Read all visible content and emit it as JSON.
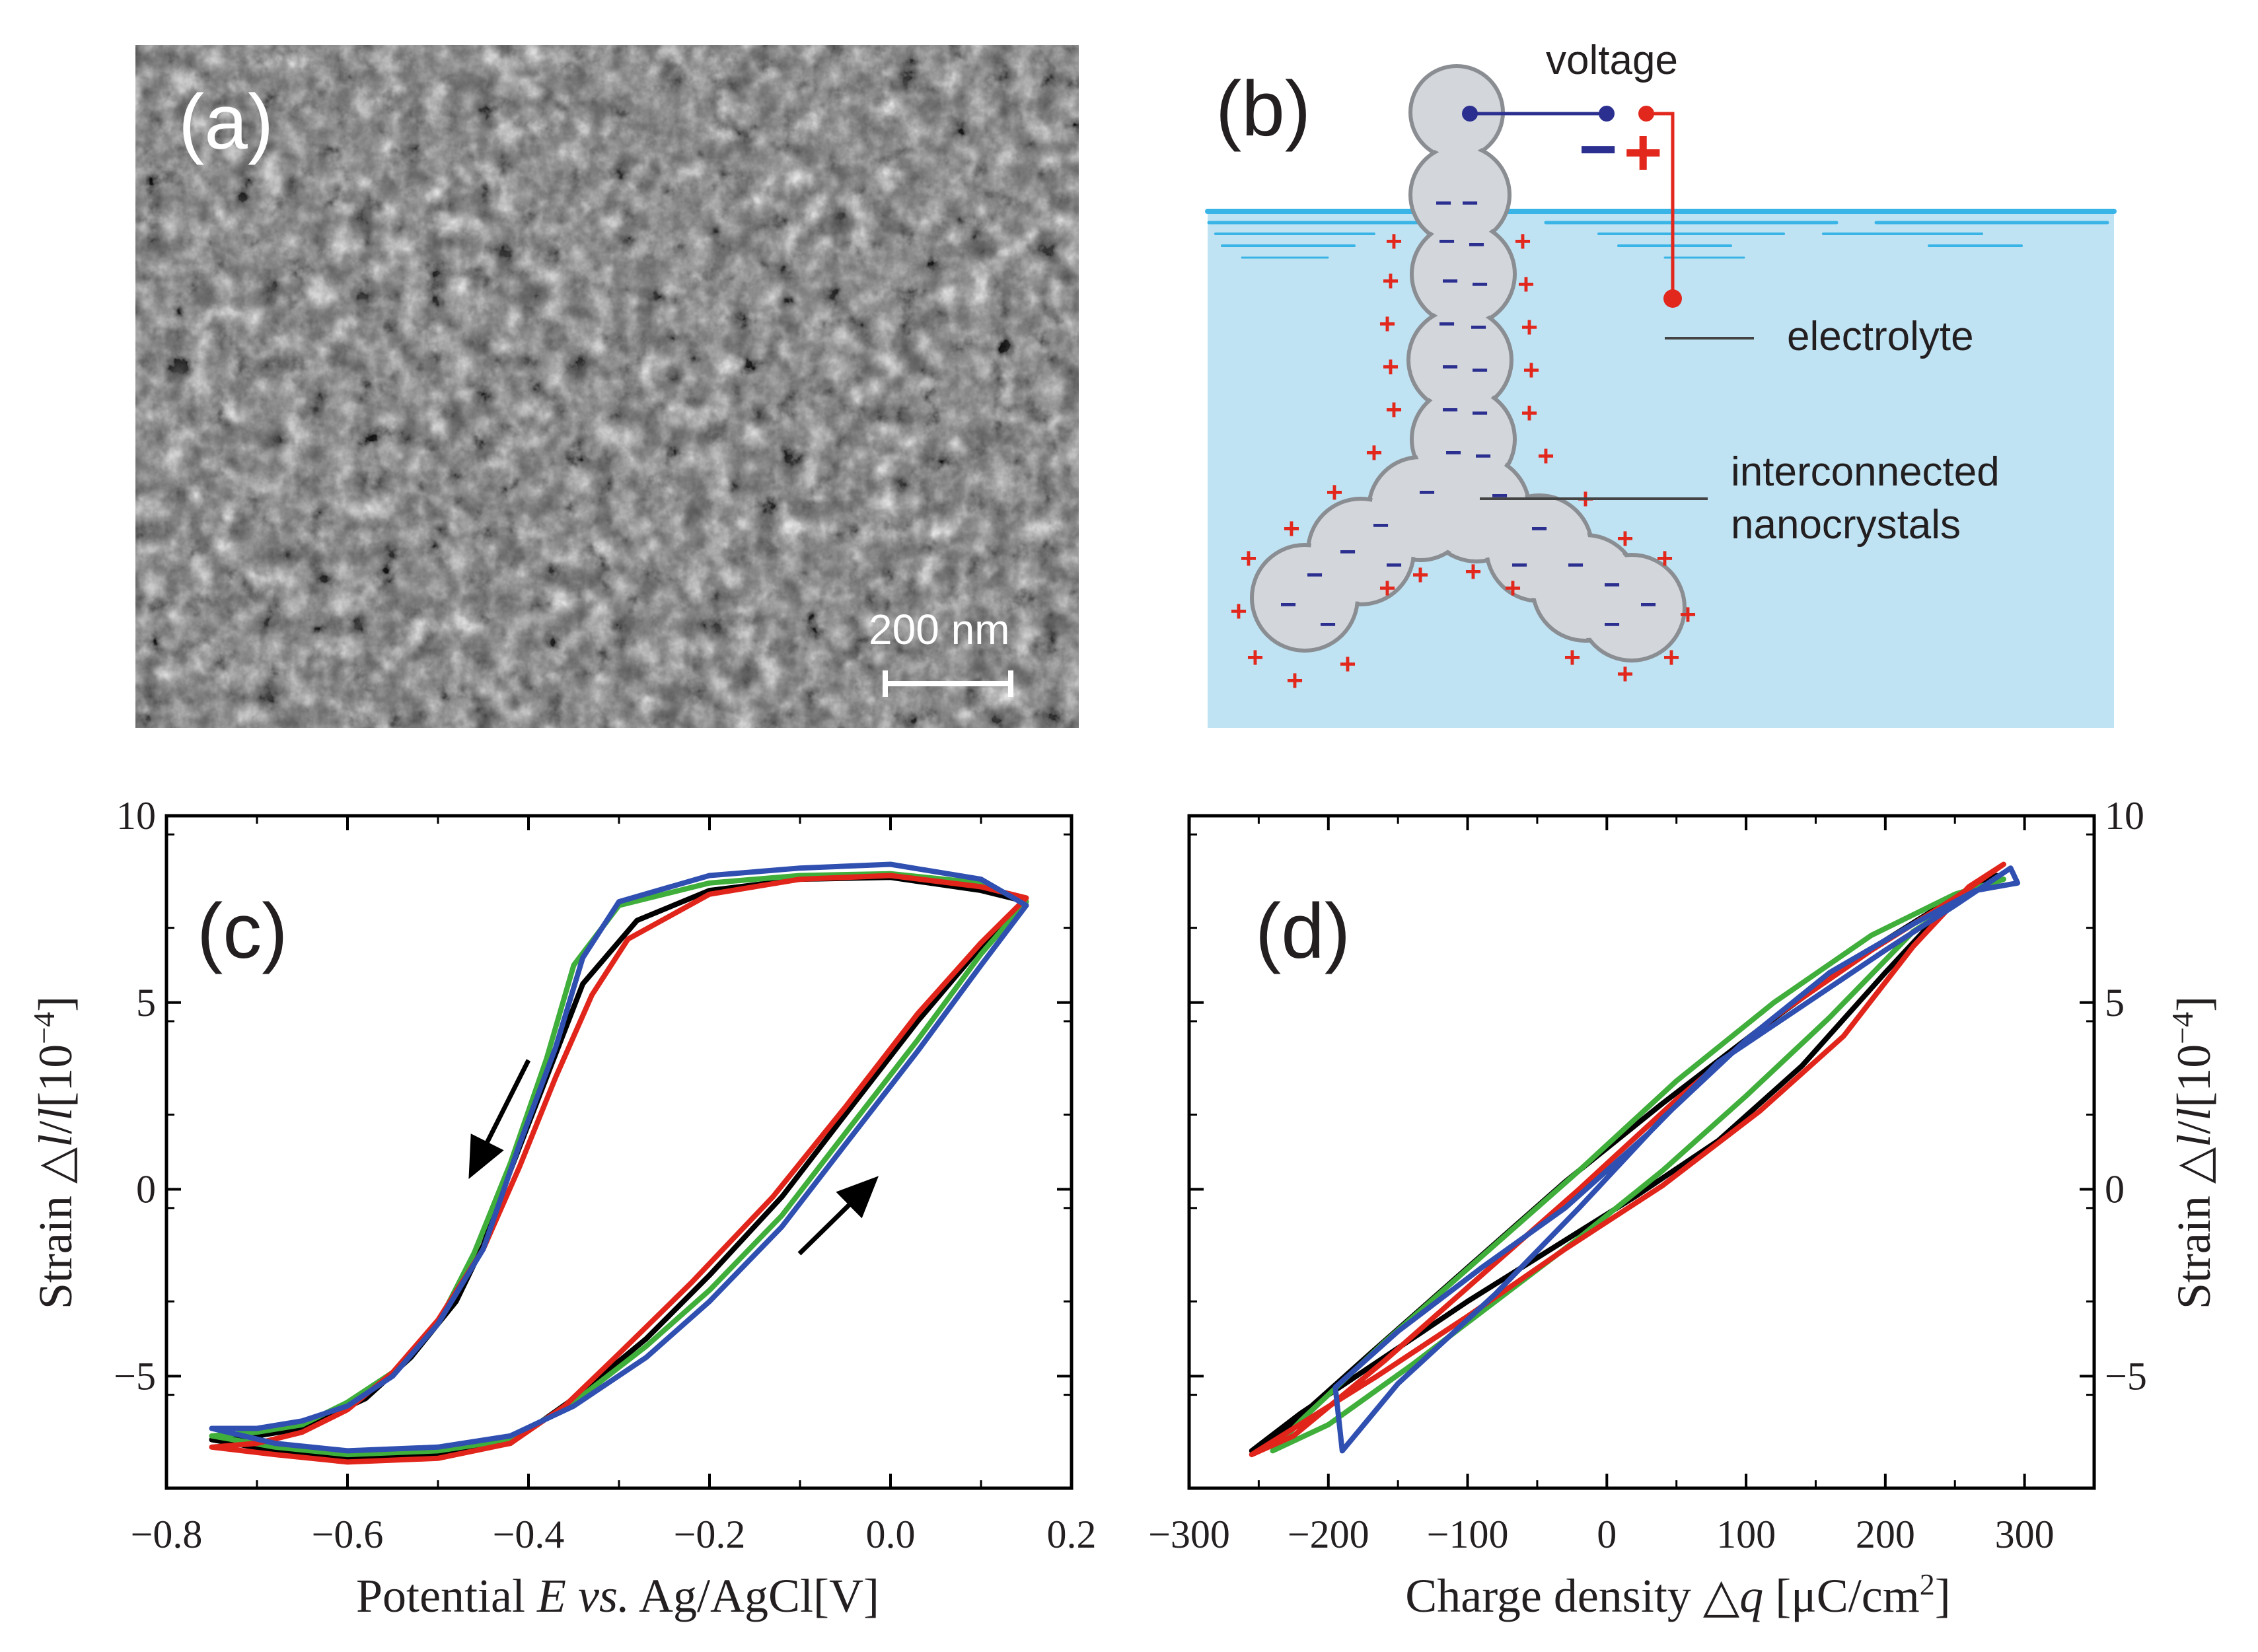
{
  "panel_a": {
    "label": "(a)",
    "scale_bar_label": "200 nm"
  },
  "panel_b": {
    "label": "(b)",
    "voltage_label": "voltage",
    "minus_sign": "−",
    "plus_sign": "+",
    "electrolyte_label": "electrolyte",
    "nanocrystal_label_line1": "interconnected",
    "nanocrystal_label_line2": "nanocrystals",
    "colors": {
      "electrolyte": "#bfe3f3",
      "surface": "#39b4e6",
      "crystal": "#d3d6db",
      "negative": "#2b2f8f",
      "positive": "#e2271c"
    }
  },
  "series_colors": {
    "black": "#000000",
    "green": "#3fae3a",
    "red": "#e1251b",
    "blue": "#2f4fb1"
  },
  "chart_data": [
    {
      "panel": "(c)",
      "type": "line",
      "xlabel_pre": "Potential ",
      "xlabel_italic_1": "E",
      "xlabel_space": " ",
      "xlabel_italic_2": "vs.",
      "xlabel_post": " Ag/AgCl[V]",
      "ylabel_pre": "Strain △",
      "ylabel_italic_1": "l",
      "ylabel_slash": "/",
      "ylabel_italic_2": "l",
      "ylabel_post": "[10",
      "ylabel_exp": "−4",
      "ylabel_close": "]",
      "xlim": [
        -0.8,
        0.2
      ],
      "ylim": [
        -8,
        10
      ],
      "xticks": [
        "−0.8",
        "−0.6",
        "−0.4",
        "−0.2",
        "0.0",
        "0.2"
      ],
      "yticks": [
        "−5",
        "0",
        "5",
        "10"
      ],
      "grid": false,
      "arrows": [
        "down-left on upper branch near E=-0.45",
        "up-right on lower branch near E=-0.1"
      ],
      "series": [
        {
          "color": "black",
          "values": [
            [
              0.15,
              7.7
            ],
            [
              0.1,
              8.0
            ],
            [
              0.0,
              8.35
            ],
            [
              -0.1,
              8.3
            ],
            [
              -0.2,
              8.0
            ],
            [
              -0.28,
              7.2
            ],
            [
              -0.34,
              5.5
            ],
            [
              -0.38,
              3.0
            ],
            [
              -0.42,
              0.5
            ],
            [
              -0.45,
              -1.5
            ],
            [
              -0.48,
              -3.0
            ],
            [
              -0.53,
              -4.5
            ],
            [
              -0.58,
              -5.6
            ],
            [
              -0.65,
              -6.4
            ],
            [
              -0.7,
              -6.6
            ],
            [
              -0.75,
              -6.7
            ],
            [
              -0.68,
              -7.0
            ],
            [
              -0.6,
              -7.2
            ],
            [
              -0.5,
              -7.1
            ],
            [
              -0.42,
              -6.8
            ],
            [
              -0.35,
              -5.6
            ],
            [
              -0.27,
              -4.0
            ],
            [
              -0.2,
              -2.3
            ],
            [
              -0.12,
              -0.2
            ],
            [
              -0.05,
              2.0
            ],
            [
              0.03,
              4.5
            ],
            [
              0.1,
              6.5
            ],
            [
              0.15,
              7.7
            ]
          ]
        },
        {
          "color": "green",
          "values": [
            [
              0.15,
              7.7
            ],
            [
              0.1,
              8.2
            ],
            [
              0.0,
              8.45
            ],
            [
              -0.1,
              8.4
            ],
            [
              -0.2,
              8.2
            ],
            [
              -0.3,
              7.6
            ],
            [
              -0.35,
              6.0
            ],
            [
              -0.38,
              3.5
            ],
            [
              -0.42,
              0.7
            ],
            [
              -0.46,
              -1.7
            ],
            [
              -0.5,
              -3.6
            ],
            [
              -0.55,
              -4.9
            ],
            [
              -0.6,
              -5.7
            ],
            [
              -0.65,
              -6.3
            ],
            [
              -0.7,
              -6.5
            ],
            [
              -0.75,
              -6.6
            ],
            [
              -0.68,
              -6.9
            ],
            [
              -0.6,
              -7.1
            ],
            [
              -0.5,
              -7.0
            ],
            [
              -0.42,
              -6.7
            ],
            [
              -0.35,
              -5.7
            ],
            [
              -0.27,
              -4.2
            ],
            [
              -0.2,
              -2.7
            ],
            [
              -0.12,
              -0.7
            ],
            [
              -0.05,
              1.5
            ],
            [
              0.03,
              4.0
            ],
            [
              0.1,
              6.3
            ],
            [
              0.15,
              7.7
            ]
          ]
        },
        {
          "color": "red",
          "values": [
            [
              0.15,
              7.8
            ],
            [
              0.1,
              8.1
            ],
            [
              0.0,
              8.4
            ],
            [
              -0.1,
              8.3
            ],
            [
              -0.2,
              7.9
            ],
            [
              -0.29,
              6.7
            ],
            [
              -0.33,
              5.2
            ],
            [
              -0.37,
              3.0
            ],
            [
              -0.41,
              0.6
            ],
            [
              -0.45,
              -1.6
            ],
            [
              -0.5,
              -3.5
            ],
            [
              -0.55,
              -4.9
            ],
            [
              -0.6,
              -5.9
            ],
            [
              -0.65,
              -6.5
            ],
            [
              -0.7,
              -6.8
            ],
            [
              -0.75,
              -6.9
            ],
            [
              -0.68,
              -7.1
            ],
            [
              -0.6,
              -7.3
            ],
            [
              -0.5,
              -7.2
            ],
            [
              -0.42,
              -6.8
            ],
            [
              -0.36,
              -5.8
            ],
            [
              -0.3,
              -4.4
            ],
            [
              -0.22,
              -2.5
            ],
            [
              -0.13,
              -0.2
            ],
            [
              -0.05,
              2.2
            ],
            [
              0.03,
              4.7
            ],
            [
              0.1,
              6.6
            ],
            [
              0.15,
              7.8
            ]
          ]
        },
        {
          "color": "blue",
          "values": [
            [
              0.15,
              7.6
            ],
            [
              0.1,
              8.3
            ],
            [
              0.0,
              8.7
            ],
            [
              -0.1,
              8.6
            ],
            [
              -0.2,
              8.4
            ],
            [
              -0.3,
              7.7
            ],
            [
              -0.34,
              6.2
            ],
            [
              -0.37,
              3.8
            ],
            [
              -0.41,
              1.2
            ],
            [
              -0.45,
              -1.6
            ],
            [
              -0.5,
              -3.6
            ],
            [
              -0.55,
              -5.0
            ],
            [
              -0.6,
              -5.8
            ],
            [
              -0.65,
              -6.2
            ],
            [
              -0.7,
              -6.4
            ],
            [
              -0.75,
              -6.4
            ],
            [
              -0.68,
              -6.8
            ],
            [
              -0.6,
              -7.0
            ],
            [
              -0.5,
              -6.9
            ],
            [
              -0.42,
              -6.6
            ],
            [
              -0.35,
              -5.8
            ],
            [
              -0.27,
              -4.5
            ],
            [
              -0.2,
              -3.0
            ],
            [
              -0.12,
              -1.0
            ],
            [
              -0.05,
              1.2
            ],
            [
              0.03,
              3.7
            ],
            [
              0.1,
              6.0
            ],
            [
              0.15,
              7.6
            ]
          ]
        }
      ]
    },
    {
      "panel": "(d)",
      "type": "line",
      "xlabel_pre": "Charge density △",
      "xlabel_italic_1": "q",
      "xlabel_post": " [μC/cm",
      "xlabel_exp": "2",
      "xlabel_close": "]",
      "ylabel_pre": "Strain △",
      "ylabel_italic_1": "l",
      "ylabel_slash": "/",
      "ylabel_italic_2": "l",
      "ylabel_post": "[10",
      "ylabel_exp": "−4",
      "ylabel_close": "]",
      "xlim": [
        -300,
        350
      ],
      "ylim": [
        -8,
        10
      ],
      "xticks": [
        "−300",
        "−200",
        "−100",
        "0",
        "100",
        "200",
        "300"
      ],
      "yticks": [
        "−5",
        "0",
        "5",
        "10"
      ],
      "grid": false,
      "series": [
        {
          "color": "black",
          "values": [
            [
              -255,
              -7.0
            ],
            [
              -220,
              -6.0
            ],
            [
              -160,
              -4.5
            ],
            [
              -100,
              -3.0
            ],
            [
              -40,
              -1.6
            ],
            [
              20,
              -0.2
            ],
            [
              80,
              1.3
            ],
            [
              140,
              3.3
            ],
            [
              200,
              5.8
            ],
            [
              250,
              7.8
            ],
            [
              280,
              8.4
            ],
            [
              240,
              7.6
            ],
            [
              180,
              6.2
            ],
            [
              110,
              4.3
            ],
            [
              40,
              2.3
            ],
            [
              -30,
              0.2
            ],
            [
              -100,
              -2.1
            ],
            [
              -170,
              -4.4
            ],
            [
              -230,
              -6.4
            ],
            [
              -255,
              -7.0
            ]
          ]
        },
        {
          "color": "green",
          "values": [
            [
              -240,
              -7.0
            ],
            [
              -200,
              -6.3
            ],
            [
              -140,
              -4.7
            ],
            [
              -80,
              -3.0
            ],
            [
              -20,
              -1.3
            ],
            [
              40,
              0.5
            ],
            [
              100,
              2.5
            ],
            [
              160,
              4.6
            ],
            [
              220,
              6.9
            ],
            [
              270,
              8.1
            ],
            [
              285,
              8.3
            ],
            [
              250,
              7.9
            ],
            [
              190,
              6.8
            ],
            [
              120,
              5.0
            ],
            [
              50,
              2.9
            ],
            [
              -20,
              0.5
            ],
            [
              -90,
              -1.8
            ],
            [
              -160,
              -4.1
            ],
            [
              -220,
              -6.2
            ],
            [
              -240,
              -7.0
            ]
          ]
        },
        {
          "color": "red",
          "values": [
            [
              -255,
              -7.1
            ],
            [
              -225,
              -6.4
            ],
            [
              -165,
              -5.0
            ],
            [
              -100,
              -3.4
            ],
            [
              -30,
              -1.6
            ],
            [
              40,
              0.1
            ],
            [
              110,
              2.1
            ],
            [
              170,
              4.1
            ],
            [
              220,
              6.5
            ],
            [
              260,
              8.1
            ],
            [
              285,
              8.7
            ],
            [
              250,
              7.8
            ],
            [
              190,
              6.4
            ],
            [
              120,
              4.6
            ],
            [
              50,
              2.4
            ],
            [
              -20,
              0.0
            ],
            [
              -90,
              -2.3
            ],
            [
              -160,
              -4.6
            ],
            [
              -225,
              -6.6
            ],
            [
              -255,
              -7.1
            ]
          ]
        },
        {
          "color": "blue",
          "values": [
            [
              -190,
              -7.0
            ],
            [
              -195,
              -5.3
            ],
            [
              -150,
              -3.8
            ],
            [
              -90,
              -2.1
            ],
            [
              -30,
              -0.5
            ],
            [
              30,
              1.5
            ],
            [
              80,
              3.4
            ],
            [
              140,
              4.9
            ],
            [
              200,
              6.4
            ],
            [
              250,
              7.6
            ],
            [
              290,
              8.6
            ],
            [
              295,
              8.2
            ],
            [
              265,
              8.0
            ],
            [
              220,
              7.1
            ],
            [
              160,
              5.8
            ],
            [
              100,
              4.0
            ],
            [
              40,
              1.9
            ],
            [
              -20,
              -0.5
            ],
            [
              -80,
              -2.8
            ],
            [
              -150,
              -5.2
            ],
            [
              -190,
              -7.0
            ]
          ]
        }
      ]
    }
  ]
}
